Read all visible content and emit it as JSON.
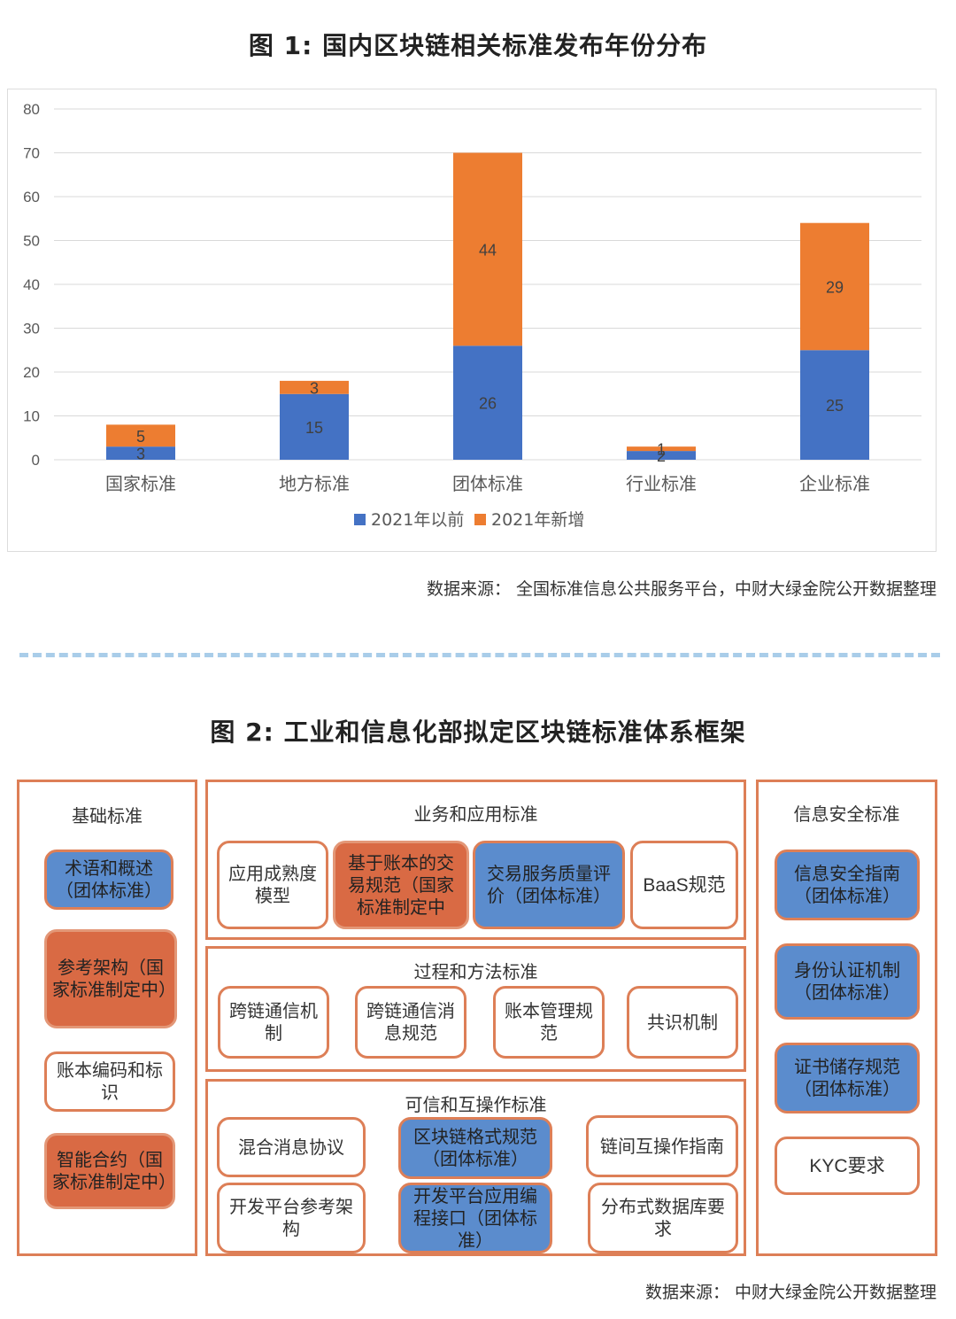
{
  "figure1": {
    "title": "图 1: 国内区块链相关标准发布年份分布",
    "source": "数据来源：  全国标准信息公共服务平台，中财大绿金院公开数据整理"
  },
  "chart_data": {
    "type": "bar",
    "stacked": true,
    "title": "图 1: 国内区块链相关标准发布年份分布",
    "categories": [
      "国家标准",
      "地方标准",
      "团体标准",
      "行业标准",
      "企业标准"
    ],
    "series": [
      {
        "name": "2021年以前",
        "values": [
          3,
          15,
          26,
          2,
          25
        ],
        "color": "#4472c4"
      },
      {
        "name": "2021年新增",
        "values": [
          5,
          3,
          44,
          1,
          29
        ],
        "color": "#ed7d31"
      }
    ],
    "ylim": [
      0,
      80
    ],
    "yticks": [
      0,
      10,
      20,
      30,
      40,
      50,
      60,
      70,
      80
    ],
    "grid": true,
    "legend_position": "bottom"
  },
  "figure2": {
    "title": "图 2: 工业和信息化部拟定区块链标准体系框架",
    "source": "数据来源：  中财大绿金院公开数据整理",
    "left": {
      "heading": "基础标准",
      "items": [
        "术语和概述（团体标准）",
        "参考架构（国家标准制定中）",
        "账本编码和标识",
        "智能合约（国家标准制定中）"
      ]
    },
    "business": {
      "heading": "业务和应用标准",
      "items": [
        "应用成熟度模型",
        "基于账本的交易规范（国家标准制定中",
        "交易服务质量评价（团体标准）",
        "BaaS规范"
      ]
    },
    "process": {
      "heading": "过程和方法标准",
      "items": [
        "跨链通信机制",
        "跨链通信消息规范",
        "账本管理规范",
        "共识机制"
      ]
    },
    "trust": {
      "heading": "可信和互操作标准",
      "items": [
        "混合消息协议",
        "区块链格式规范（团体标准）",
        "链间互操作指南",
        "开发平台参考架构",
        "开发平台应用编程接口（团体标准）",
        "分布式数据库要求"
      ]
    },
    "right": {
      "heading": "信息安全标准",
      "items": [
        "信息安全指南（团体标准）",
        "身份认证机制（团体标准）",
        "证书储存规范（团体标准）",
        "KYC要求"
      ]
    }
  }
}
